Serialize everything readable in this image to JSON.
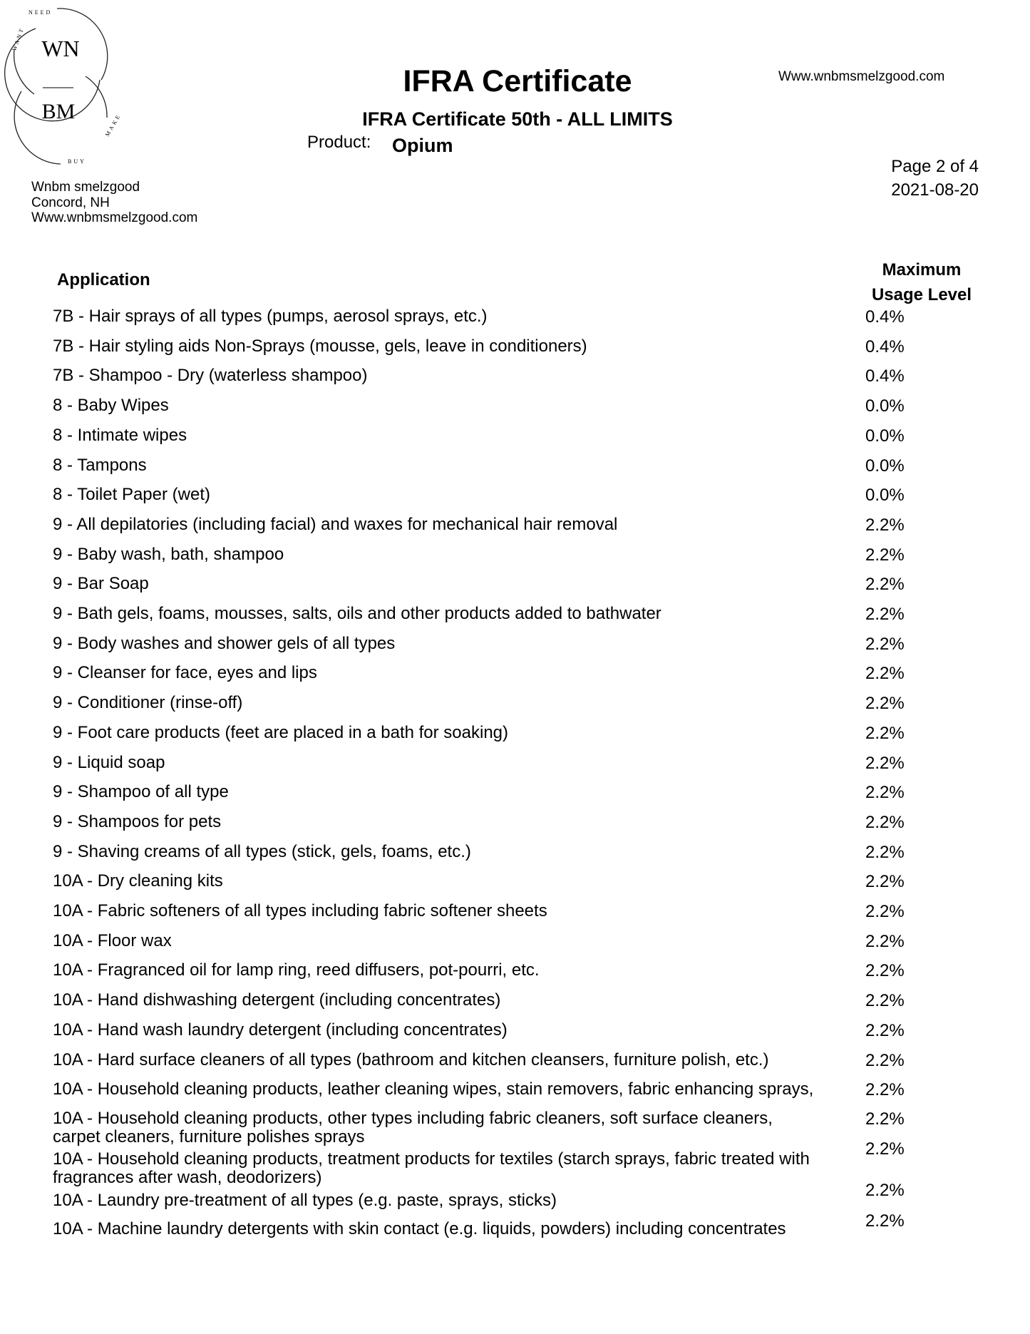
{
  "logo": {
    "top": "WN",
    "bottom": "BM",
    "ring_top": "WANT NEED",
    "ring_bottom": "BUY MAKE"
  },
  "company": {
    "name": "Wnbm smelzgood",
    "location": "Concord, NH",
    "website": "Www.wnbmsmelzgood.com"
  },
  "header": {
    "title": "IFRA Certificate",
    "subtitle": "IFRA Certificate 50th - ALL LIMITS",
    "product_label": "Product:",
    "product_name": "Opium",
    "website": "Www.wnbmsmelzgood.com",
    "page": "Page 2 of 4",
    "date": "2021-08-20"
  },
  "table": {
    "col_application": "Application",
    "col_max_line1": "Maximum",
    "col_max_line2": "Usage Level",
    "rows": [
      {
        "application": "7B - Hair sprays of all types (pumps, aerosol sprays, etc.)",
        "level": "0.4%"
      },
      {
        "application": "7B - Hair styling aids Non-Sprays (mousse, gels, leave in conditioners)",
        "level": "0.4%"
      },
      {
        "application": "7B - Shampoo - Dry (waterless shampoo)",
        "level": "0.4%"
      },
      {
        "application": "8 - Baby Wipes",
        "level": "0.0%"
      },
      {
        "application": "8 - Intimate wipes",
        "level": "0.0%"
      },
      {
        "application": "8 - Tampons",
        "level": "0.0%"
      },
      {
        "application": "8 - Toilet Paper (wet)",
        "level": "0.0%"
      },
      {
        "application": "9 - All depilatories (including facial) and waxes for mechanical hair removal",
        "level": "2.2%"
      },
      {
        "application": "9 - Baby wash, bath, shampoo",
        "level": "2.2%"
      },
      {
        "application": "9 - Bar Soap",
        "level": "2.2%"
      },
      {
        "application": "9 - Bath gels, foams, mousses, salts, oils and other products added to bathwater",
        "level": "2.2%"
      },
      {
        "application": "9 - Body washes and shower gels of all types",
        "level": "2.2%"
      },
      {
        "application": "9 - Cleanser for face, eyes and lips",
        "level": "2.2%"
      },
      {
        "application": "9 - Conditioner (rinse-off)",
        "level": "2.2%"
      },
      {
        "application": "9 - Foot care products (feet are placed in a bath for soaking)",
        "level": "2.2%"
      },
      {
        "application": "9 - Liquid soap",
        "level": "2.2%"
      },
      {
        "application": "9 - Shampoo of all type",
        "level": "2.2%"
      },
      {
        "application": "9 - Shampoos for pets",
        "level": "2.2%"
      },
      {
        "application": "9 - Shaving creams of all types (stick, gels, foams, etc.)",
        "level": "2.2%"
      },
      {
        "application": "10A - Dry cleaning kits",
        "level": "2.2%"
      },
      {
        "application": "10A - Fabric softeners of all types including fabric softener sheets",
        "level": "2.2%"
      },
      {
        "application": "10A - Floor wax",
        "level": "2.2%"
      },
      {
        "application": "10A - Fragranced oil for lamp ring, reed diffusers, pot-pourri, etc.",
        "level": "2.2%"
      },
      {
        "application": "10A - Hand dishwashing detergent (including concentrates)",
        "level": "2.2%"
      },
      {
        "application": "10A - Hand wash laundry detergent (including concentrates)",
        "level": "2.2%"
      },
      {
        "application": "10A - Hard surface cleaners of all types (bathroom and kitchen cleansers, furniture polish, etc.)",
        "level": "2.2%"
      },
      {
        "application": "10A - Household cleaning products, leather cleaning wipes, stain removers, fabric enhancing sprays,",
        "level": "2.2%"
      },
      {
        "application": "10A - Household cleaning products, other types including fabric cleaners, soft surface cleaners, carpet cleaners, furniture polishes sprays",
        "level": "2.2%"
      },
      {
        "application": "10A - Household cleaning products, treatment products for textiles (starch sprays, fabric treated with fragrances after wash, deodorizers)",
        "level": "2.2%"
      },
      {
        "application": "10A - Laundry pre-treatment of all types (e.g. paste, sprays, sticks)",
        "level": "2.2%"
      },
      {
        "application": "10A - Machine laundry detergents with skin contact (e.g. liquids, powders) including concentrates",
        "level": "2.2%"
      }
    ]
  }
}
